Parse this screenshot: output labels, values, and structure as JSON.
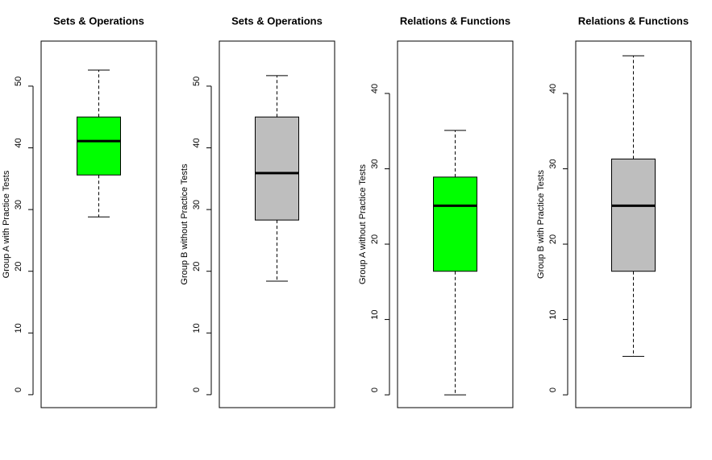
{
  "chart_data": [
    {
      "type": "box",
      "title": "Sets & Operations",
      "y_label": "Group A with Practice Tests",
      "color": "#00ff00",
      "box": {
        "min": 28.8,
        "q1": 35.6,
        "median": 41.1,
        "q3": 45.0,
        "max": 52.6
      },
      "ylim": [
        -2.1,
        57.3
      ],
      "yticks": [
        0,
        10,
        20,
        30,
        40,
        50
      ]
    },
    {
      "type": "box",
      "title": "Sets & Operations",
      "y_label": "Group B without Practice Tests",
      "color": "#bebebe",
      "box": {
        "min": 18.4,
        "q1": 28.3,
        "median": 35.9,
        "q3": 45.0,
        "max": 51.7
      },
      "ylim": [
        -2.1,
        57.3
      ],
      "yticks": [
        0,
        10,
        20,
        30,
        40,
        50
      ]
    },
    {
      "type": "box",
      "title": "Relations & Functions",
      "y_label": "Group A without Practice Tests",
      "color": "#00ff00",
      "box": {
        "min": 0,
        "q1": 16.4,
        "median": 25.1,
        "q3": 28.9,
        "max": 35.1
      },
      "ylim": [
        -1.7,
        46.95
      ],
      "yticks": [
        0,
        10,
        20,
        30,
        40
      ]
    },
    {
      "type": "box",
      "title": "Relations & Functions",
      "y_label": "Group B with Practice Tests",
      "color": "#bebebe",
      "box": {
        "min": 5.1,
        "q1": 16.4,
        "median": 25.1,
        "q3": 31.3,
        "max": 45.0
      },
      "ylim": [
        -1.7,
        46.95
      ],
      "yticks": [
        0,
        10,
        20,
        30,
        40
      ]
    }
  ]
}
